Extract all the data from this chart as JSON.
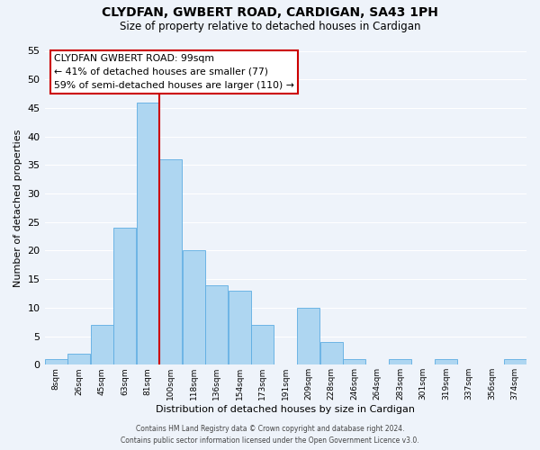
{
  "title": "CLYDFAN, GWBERT ROAD, CARDIGAN, SA43 1PH",
  "subtitle": "Size of property relative to detached houses in Cardigan",
  "xlabel": "Distribution of detached houses by size in Cardigan",
  "ylabel": "Number of detached properties",
  "bin_labels": [
    "8sqm",
    "26sqm",
    "45sqm",
    "63sqm",
    "81sqm",
    "100sqm",
    "118sqm",
    "136sqm",
    "154sqm",
    "173sqm",
    "191sqm",
    "209sqm",
    "228sqm",
    "246sqm",
    "264sqm",
    "283sqm",
    "301sqm",
    "319sqm",
    "337sqm",
    "356sqm",
    "374sqm"
  ],
  "bar_values": [
    1,
    2,
    7,
    24,
    46,
    36,
    20,
    14,
    13,
    7,
    0,
    10,
    4,
    1,
    0,
    1,
    0,
    1,
    0,
    0,
    1
  ],
  "bar_color": "#aed6f1",
  "bar_edge_color": "#5dade2",
  "marker_line_color": "#cc0000",
  "annotation_line1": "CLYDFAN GWBERT ROAD: 99sqm",
  "annotation_line2": "← 41% of detached houses are smaller (77)",
  "annotation_line3": "59% of semi-detached houses are larger (110) →",
  "annotation_box_facecolor": "#ffffff",
  "annotation_box_edgecolor": "#cc0000",
  "ylim": [
    0,
    55
  ],
  "yticks": [
    0,
    5,
    10,
    15,
    20,
    25,
    30,
    35,
    40,
    45,
    50,
    55
  ],
  "background_color": "#eef3fa",
  "grid_color": "#ffffff",
  "footer1": "Contains HM Land Registry data © Crown copyright and database right 2024.",
  "footer2": "Contains public sector information licensed under the Open Government Licence v3.0."
}
